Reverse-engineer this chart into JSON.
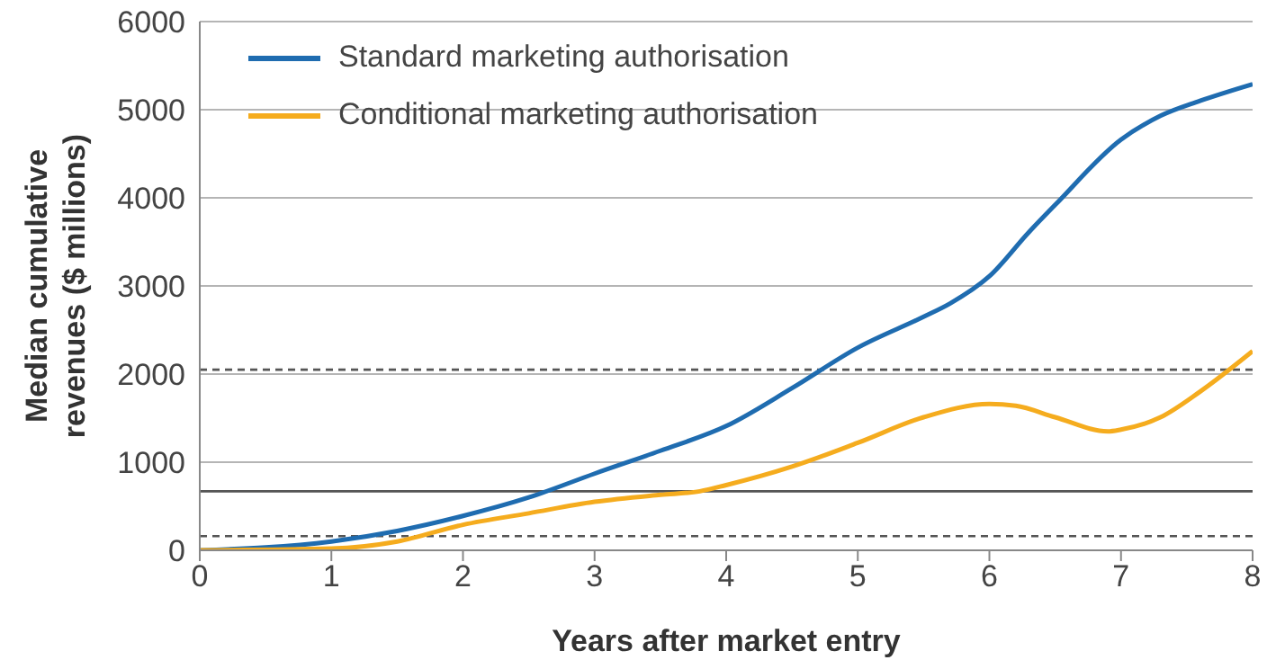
{
  "chart_data": {
    "type": "line",
    "xlabel": "Years after market entry",
    "ylabel": "Median cumulative revenues ($ millions)",
    "series": [
      {
        "name": "Standard marketing authorisation",
        "color": "#1f6cb0",
        "x": [
          0,
          1,
          1.5,
          2,
          2.5,
          3,
          3.5,
          4,
          4.5,
          5,
          5.5,
          5.7,
          6,
          6.3,
          6.5,
          7,
          7.3,
          7.6,
          8
        ],
        "values": [
          0,
          100,
          220,
          390,
          600,
          870,
          1130,
          1410,
          1840,
          2300,
          2650,
          2800,
          3110,
          3610,
          3920,
          4660,
          4930,
          5100,
          5290
        ]
      },
      {
        "name": "Conditional marketing authorisation",
        "color": "#f5ac1e",
        "x": [
          0,
          1,
          1.5,
          2,
          2.5,
          3,
          3.5,
          3.8,
          4,
          4.5,
          5,
          5.5,
          6,
          6.2,
          6.5,
          6.9,
          7,
          7.3,
          7.6,
          8
        ],
        "values": [
          0,
          20,
          100,
          290,
          420,
          550,
          630,
          670,
          740,
          950,
          1220,
          1510,
          1660,
          1640,
          1510,
          1350,
          1370,
          1510,
          1800,
          2260
        ]
      }
    ],
    "xlim": [
      0,
      8
    ],
    "xticks": [
      0,
      1,
      2,
      3,
      4,
      5,
      6,
      7,
      8
    ],
    "ylim": [
      0,
      6000
    ],
    "yticks": [
      0,
      1000,
      2000,
      3000,
      4000,
      5000,
      6000
    ],
    "ref_lines": [
      {
        "axis": "y",
        "value": 2050,
        "color": "#555555",
        "line_style": "dashed"
      },
      {
        "axis": "y",
        "value": 670,
        "color": "#555555",
        "line_style": "solid"
      },
      {
        "axis": "y",
        "value": 160,
        "color": "#555555",
        "line_style": "dashed"
      }
    ],
    "grid": "y",
    "legend": "top left",
    "marker": "none",
    "line_style": "solid"
  }
}
